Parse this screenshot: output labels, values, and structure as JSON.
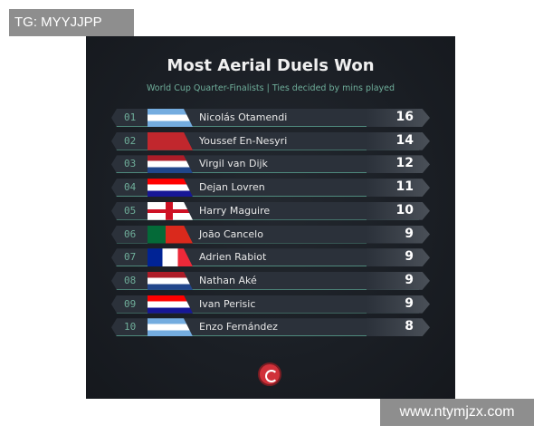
{
  "watermarks": {
    "top": "TG: MYYJJPP",
    "bottom": "www.ntymjzx.com"
  },
  "title": "Most Aerial Duels Won",
  "subtitle": "World Cup Quarter-Finalists | Ties decided by mins played",
  "rows": [
    {
      "rank": "01",
      "name": "Nicolás Otamendi",
      "value": "16",
      "flag": "argentina"
    },
    {
      "rank": "02",
      "name": "Youssef En-Nesyri",
      "value": "14",
      "flag": "morocco"
    },
    {
      "rank": "03",
      "name": "Virgil van Dijk",
      "value": "12",
      "flag": "netherlands"
    },
    {
      "rank": "04",
      "name": "Dejan Lovren",
      "value": "11",
      "flag": "croatia"
    },
    {
      "rank": "05",
      "name": "Harry Maguire",
      "value": "10",
      "flag": "england"
    },
    {
      "rank": "06",
      "name": "João Cancelo",
      "value": "9",
      "flag": "portugal"
    },
    {
      "rank": "07",
      "name": "Adrien Rabiot",
      "value": "9",
      "flag": "france"
    },
    {
      "rank": "08",
      "name": "Nathan Aké",
      "value": "9",
      "flag": "netherlands"
    },
    {
      "rank": "09",
      "name": "Ivan Perisic",
      "value": "9",
      "flag": "croatia"
    },
    {
      "rank": "10",
      "name": "Enzo Fernández",
      "value": "8",
      "flag": "argentina"
    }
  ]
}
